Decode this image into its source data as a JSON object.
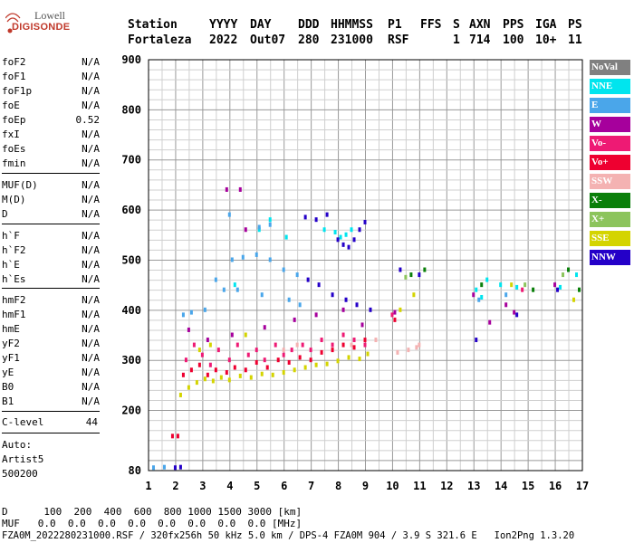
{
  "logo": {
    "line1": "Lowell",
    "line2": "DIGISONDE"
  },
  "header": {
    "labels": [
      "Station",
      "YYYY",
      "DAY",
      "DDD",
      "HHMMSS",
      "P1",
      "FFS",
      "S",
      "AXN",
      "PPS",
      "IGA",
      "PS"
    ],
    "values": [
      "Fortaleza",
      "2022",
      "Out07",
      "280",
      "231000",
      "RSF",
      "",
      "1",
      "714",
      "100",
      "10+",
      "11"
    ]
  },
  "left_panel": {
    "group1": [
      {
        "name": "foF2",
        "value": "N/A"
      },
      {
        "name": "foF1",
        "value": "N/A"
      },
      {
        "name": "foF1p",
        "value": "N/A"
      },
      {
        "name": "foE",
        "value": "N/A"
      },
      {
        "name": "foEp",
        "value": "0.52"
      },
      {
        "name": "fxI",
        "value": "N/A"
      },
      {
        "name": "foEs",
        "value": "N/A"
      },
      {
        "name": "fmin",
        "value": "N/A"
      }
    ],
    "group2": [
      {
        "name": "MUF(D)",
        "value": "N/A"
      },
      {
        "name": "M(D)",
        "value": "N/A"
      },
      {
        "name": "D",
        "value": "N/A"
      }
    ],
    "group3": [
      {
        "name": "h`F",
        "value": "N/A"
      },
      {
        "name": "h`F2",
        "value": "N/A"
      },
      {
        "name": "h`E",
        "value": "N/A"
      },
      {
        "name": "h`Es",
        "value": "N/A"
      }
    ],
    "group4": [
      {
        "name": "hmF2",
        "value": "N/A"
      },
      {
        "name": "hmF1",
        "value": "N/A"
      },
      {
        "name": "hmE",
        "value": "N/A"
      },
      {
        "name": "yF2",
        "value": "N/A"
      },
      {
        "name": "yF1",
        "value": "N/A"
      },
      {
        "name": "yE",
        "value": "N/A"
      },
      {
        "name": "B0",
        "value": "N/A"
      },
      {
        "name": "B1",
        "value": "N/A"
      }
    ],
    "c_level": {
      "name": "C-level",
      "value": "44"
    },
    "auto": [
      "Auto:",
      "Artist5",
      "500200"
    ]
  },
  "legend": [
    {
      "label": "NoVal",
      "color": "#808080"
    },
    {
      "label": "NNE",
      "color": "#00e5ee"
    },
    {
      "label": "E",
      "color": "#4aa6ea"
    },
    {
      "label": "W",
      "color": "#a6009c"
    },
    {
      "label": "Vo-",
      "color": "#ee1a74"
    },
    {
      "label": "Vo+",
      "color": "#ee0030"
    },
    {
      "label": "SSW",
      "color": "#f4b2b2"
    },
    {
      "label": "X-",
      "color": "#0a7f0a"
    },
    {
      "label": "X+",
      "color": "#8cc45c"
    },
    {
      "label": "SSE",
      "color": "#d4d400"
    },
    {
      "label": "NNW",
      "color": "#2400c8"
    }
  ],
  "footer": {
    "d_row": "D      100  200  400  600  800 1000 1500 3000 [km]",
    "muf_row": "MUF   0.0  0.0  0.0  0.0  0.0  0.0  0.0  0.0 [MHz]",
    "info": "FZA0M_2022280231000.RSF / 320fx256h 50 kHz 5.0 km / DPS-4 FZA0M 904 / 3.9 S 321.6 E   Ion2Png 1.3.20"
  },
  "chart_data": {
    "type": "scatter",
    "title": "",
    "xlabel": "",
    "ylabel": "",
    "xlim": [
      1,
      17
    ],
    "ylim": [
      80,
      900
    ],
    "xticks": [
      1,
      2,
      3,
      4,
      5,
      6,
      7,
      8,
      9,
      10,
      11,
      12,
      13,
      14,
      15,
      16,
      17
    ],
    "yticks": [
      80,
      200,
      300,
      400,
      500,
      600,
      700,
      800,
      900
    ],
    "grid": true,
    "series": [
      {
        "name": "NNE",
        "color": "#00e5ee",
        "points": [
          [
            4.2,
            450
          ],
          [
            5.1,
            560
          ],
          [
            5.5,
            580
          ],
          [
            6.1,
            545
          ],
          [
            7.5,
            560
          ],
          [
            7.9,
            555
          ],
          [
            8.1,
            545
          ],
          [
            8.3,
            550
          ],
          [
            8.5,
            560
          ],
          [
            13.1,
            440
          ],
          [
            13.3,
            425
          ],
          [
            13.5,
            460
          ],
          [
            14.0,
            450
          ],
          [
            14.6,
            445
          ],
          [
            16.2,
            445
          ],
          [
            16.8,
            470
          ]
        ]
      },
      {
        "name": "E",
        "color": "#4aa6ea",
        "points": [
          [
            2.3,
            390
          ],
          [
            2.6,
            395
          ],
          [
            3.1,
            400
          ],
          [
            3.5,
            460
          ],
          [
            4.1,
            500
          ],
          [
            4.5,
            505
          ],
          [
            5.0,
            510
          ],
          [
            5.5,
            500
          ],
          [
            6.0,
            480
          ],
          [
            6.5,
            470
          ],
          [
            3.8,
            440
          ],
          [
            4.3,
            440
          ],
          [
            5.2,
            430
          ],
          [
            6.2,
            420
          ],
          [
            6.6,
            410
          ],
          [
            4.0,
            590
          ],
          [
            5.1,
            565
          ],
          [
            5.5,
            570
          ],
          [
            1.2,
            85
          ],
          [
            1.6,
            86
          ],
          [
            13.2,
            420
          ],
          [
            14.2,
            430
          ]
        ]
      },
      {
        "name": "W",
        "color": "#a6009c",
        "points": [
          [
            3.9,
            640
          ],
          [
            4.4,
            640
          ],
          [
            4.6,
            560
          ],
          [
            2.5,
            360
          ],
          [
            3.2,
            340
          ],
          [
            4.1,
            350
          ],
          [
            5.3,
            365
          ],
          [
            6.4,
            380
          ],
          [
            7.2,
            390
          ],
          [
            8.2,
            400
          ],
          [
            8.9,
            370
          ],
          [
            10.1,
            395
          ],
          [
            13.0,
            430
          ],
          [
            13.6,
            375
          ],
          [
            14.2,
            410
          ],
          [
            14.5,
            395
          ],
          [
            16.0,
            450
          ]
        ]
      },
      {
        "name": "Vo-",
        "color": "#ee1a74",
        "points": [
          [
            2.4,
            300
          ],
          [
            2.7,
            330
          ],
          [
            3.0,
            310
          ],
          [
            3.3,
            290
          ],
          [
            3.6,
            320
          ],
          [
            4.0,
            300
          ],
          [
            4.3,
            330
          ],
          [
            4.7,
            310
          ],
          [
            5.0,
            320
          ],
          [
            5.3,
            300
          ],
          [
            5.7,
            330
          ],
          [
            6.0,
            310
          ],
          [
            6.3,
            320
          ],
          [
            6.7,
            330
          ],
          [
            7.0,
            320
          ],
          [
            7.4,
            340
          ],
          [
            7.8,
            330
          ],
          [
            8.2,
            350
          ],
          [
            8.6,
            340
          ],
          [
            9.0,
            330
          ],
          [
            10.0,
            390
          ],
          [
            14.8,
            440
          ]
        ]
      },
      {
        "name": "Vo+",
        "color": "#ee0030",
        "points": [
          [
            1.9,
            148
          ],
          [
            2.1,
            148
          ],
          [
            2.3,
            270
          ],
          [
            2.6,
            280
          ],
          [
            2.9,
            290
          ],
          [
            3.2,
            270
          ],
          [
            3.5,
            280
          ],
          [
            3.9,
            275
          ],
          [
            4.2,
            285
          ],
          [
            4.6,
            280
          ],
          [
            5.0,
            295
          ],
          [
            5.4,
            285
          ],
          [
            5.8,
            300
          ],
          [
            6.2,
            295
          ],
          [
            6.6,
            305
          ],
          [
            7.0,
            300
          ],
          [
            7.4,
            315
          ],
          [
            7.8,
            320
          ],
          [
            8.2,
            330
          ],
          [
            8.6,
            325
          ],
          [
            9.0,
            340
          ],
          [
            10.1,
            380
          ]
        ]
      },
      {
        "name": "SSW",
        "color": "#f4b2b2",
        "points": [
          [
            6.0,
            320
          ],
          [
            6.5,
            330
          ],
          [
            8.5,
            330
          ],
          [
            9.4,
            340
          ],
          [
            10.2,
            315
          ],
          [
            10.6,
            320
          ],
          [
            10.9,
            325
          ],
          [
            11.0,
            330
          ]
        ]
      },
      {
        "name": "X-",
        "color": "#0a7f0a",
        "points": [
          [
            10.7,
            470
          ],
          [
            11.2,
            480
          ],
          [
            13.3,
            450
          ],
          [
            15.2,
            440
          ],
          [
            16.5,
            480
          ],
          [
            16.9,
            440
          ]
        ]
      },
      {
        "name": "X+",
        "color": "#8cc45c",
        "points": [
          [
            10.5,
            465
          ],
          [
            14.9,
            450
          ],
          [
            16.3,
            470
          ]
        ]
      },
      {
        "name": "SSE",
        "color": "#d4d400",
        "points": [
          [
            2.2,
            230
          ],
          [
            2.5,
            245
          ],
          [
            2.8,
            255
          ],
          [
            3.1,
            262
          ],
          [
            3.4,
            258
          ],
          [
            3.7,
            265
          ],
          [
            4.0,
            260
          ],
          [
            4.4,
            268
          ],
          [
            4.8,
            265
          ],
          [
            5.2,
            272
          ],
          [
            5.6,
            270
          ],
          [
            6.0,
            275
          ],
          [
            6.4,
            280
          ],
          [
            6.8,
            285
          ],
          [
            7.2,
            290
          ],
          [
            7.6,
            292
          ],
          [
            8.0,
            298
          ],
          [
            8.4,
            305
          ],
          [
            8.8,
            302
          ],
          [
            9.1,
            312
          ],
          [
            2.9,
            320
          ],
          [
            3.3,
            330
          ],
          [
            4.6,
            350
          ],
          [
            10.3,
            400
          ],
          [
            10.8,
            430
          ],
          [
            14.4,
            450
          ],
          [
            16.7,
            420
          ]
        ]
      },
      {
        "name": "NNW",
        "color": "#2400c8",
        "points": [
          [
            2.0,
            85
          ],
          [
            2.2,
            86
          ],
          [
            6.8,
            585
          ],
          [
            7.2,
            580
          ],
          [
            7.6,
            590
          ],
          [
            8.0,
            540
          ],
          [
            8.2,
            530
          ],
          [
            8.4,
            525
          ],
          [
            8.6,
            540
          ],
          [
            8.8,
            560
          ],
          [
            9.0,
            575
          ],
          [
            6.9,
            460
          ],
          [
            7.3,
            450
          ],
          [
            7.8,
            430
          ],
          [
            8.3,
            420
          ],
          [
            8.7,
            410
          ],
          [
            9.2,
            400
          ],
          [
            10.3,
            480
          ],
          [
            11.0,
            470
          ],
          [
            13.1,
            340
          ],
          [
            14.6,
            390
          ],
          [
            16.1,
            440
          ]
        ]
      }
    ]
  }
}
